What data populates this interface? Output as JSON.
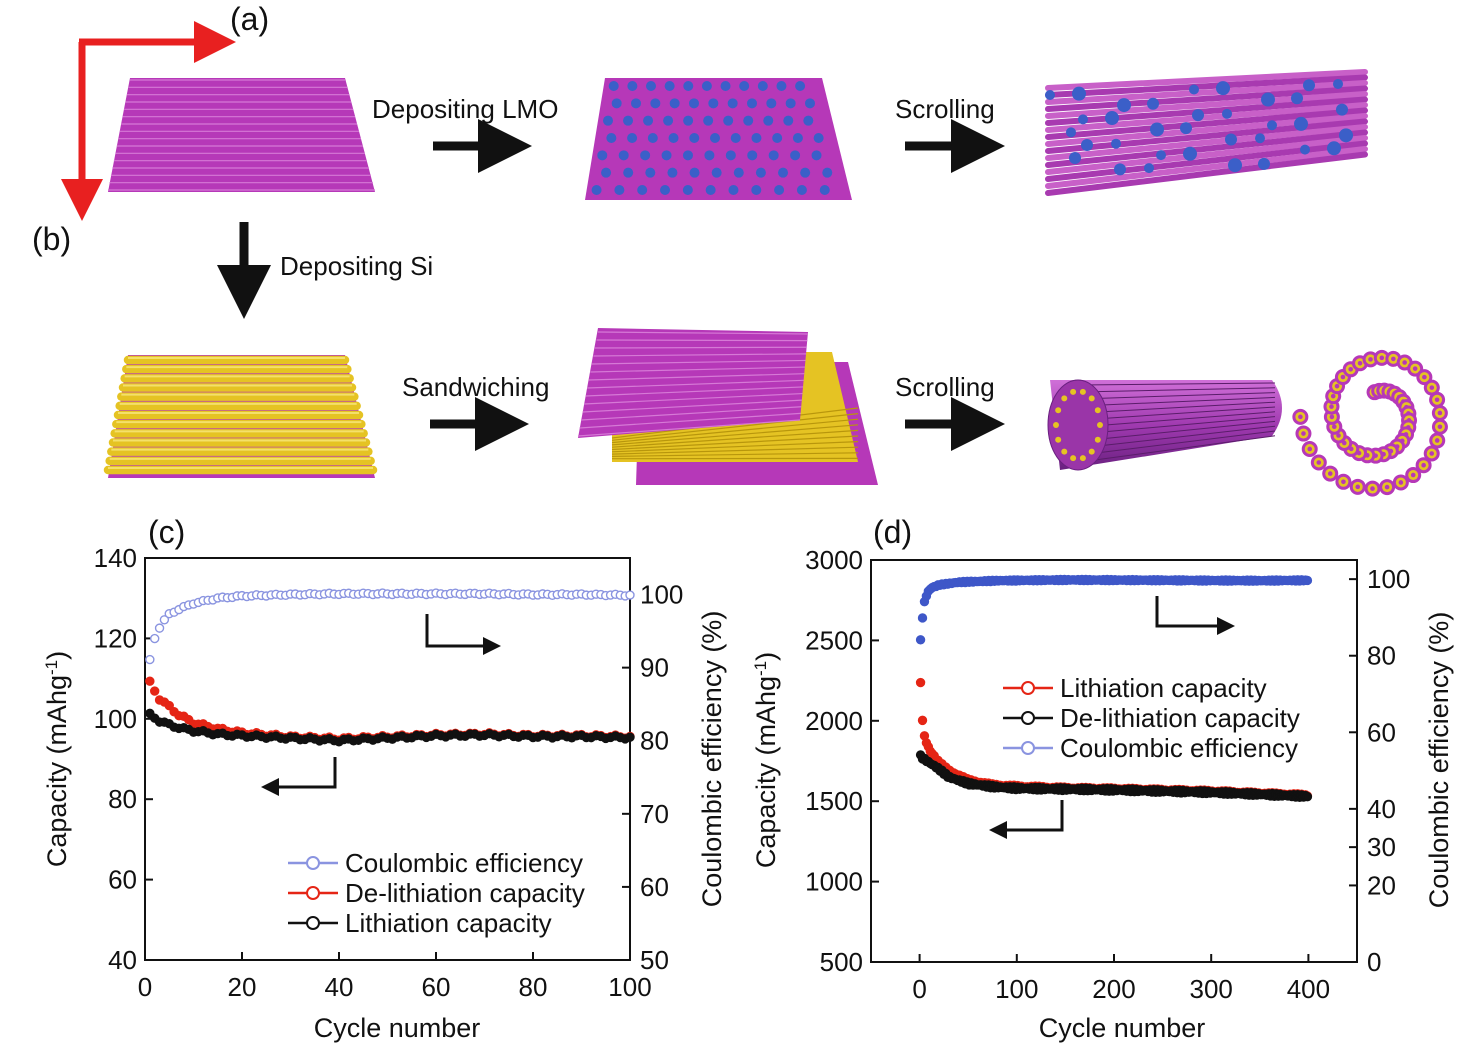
{
  "panel_labels": {
    "a": "(a)",
    "b": "(b)",
    "c": "(c)",
    "d": "(d)"
  },
  "schematic": {
    "step_depositing_lmo": "Depositing LMO",
    "step_scrolling_top": "Scrolling",
    "step_depositing_si": "Depositing Si",
    "step_sandwiching": "Sandwiching",
    "step_scrolling_bottom": "Scrolling"
  },
  "colors": {
    "magenta_sheet": "#c040c0",
    "gold_layer": "#e5c323",
    "lmo_particle": "#3b5fc8",
    "red_arrow": "#e82020",
    "lithiation_red": "#e52515",
    "delithiation_black": "#111111",
    "ce_blue_c": "#8a94e0",
    "ce_blue_d": "#3e57c8"
  },
  "chart_data": [
    {
      "panel": "c",
      "type": "scatter",
      "xlabel": "Cycle number",
      "ylabel_left": "Capacity (mAhg",
      "ylabel_left_sup": "-1",
      "ylabel_left_tail": ")",
      "ylabel_right": "Coulombic efficiency (%)",
      "xlim": [
        0,
        100
      ],
      "ylim_left": [
        40,
        140
      ],
      "ylim_right": [
        50,
        105
      ],
      "x_ticks": [
        "0",
        "20",
        "40",
        "60",
        "80",
        "100"
      ],
      "y_ticks_left": [
        "40",
        "60",
        "80",
        "100",
        "120",
        "140"
      ],
      "y_ticks_right": [
        "50",
        "60",
        "70",
        "80",
        "90",
        "100"
      ],
      "legend": [
        "Coulombic efficiency",
        "De-lithiation capacity",
        "Lithiation capacity"
      ],
      "series": [
        {
          "name": "Coulombic efficiency",
          "axis": "right",
          "x": [
            1,
            2,
            3,
            4,
            5,
            7,
            10,
            15,
            20,
            30,
            40,
            50,
            60,
            70,
            80,
            90,
            100
          ],
          "values": [
            91,
            94,
            95.5,
            96.5,
            97.3,
            98,
            98.8,
            99.5,
            99.8,
            100,
            100.1,
            100.1,
            100.1,
            100.1,
            100,
            100,
            99.9
          ]
        },
        {
          "name": "De-lithiation capacity",
          "axis": "left",
          "x": [
            1,
            2,
            3,
            5,
            7,
            10,
            15,
            20,
            30,
            40,
            50,
            60,
            70,
            80,
            90,
            100
          ],
          "values": [
            109,
            107,
            105,
            103,
            101,
            99,
            97.5,
            96.5,
            95.5,
            95,
            95.5,
            96,
            96.2,
            95.8,
            95.8,
            95.5
          ]
        },
        {
          "name": "Lithiation capacity",
          "axis": "left",
          "x": [
            1,
            3,
            5,
            8,
            10,
            15,
            20,
            30,
            40,
            50,
            60,
            70,
            80,
            90,
            100
          ],
          "values": [
            101,
            99.5,
            98.5,
            97.5,
            97,
            96.2,
            95.8,
            95.2,
            94.6,
            95.2,
            95.8,
            96,
            95.6,
            95.6,
            95.3
          ]
        }
      ]
    },
    {
      "panel": "d",
      "type": "scatter",
      "xlabel": "Cycle number",
      "ylabel_left": "Capacity (mAhg",
      "ylabel_left_sup": "-1",
      "ylabel_left_tail": ")",
      "ylabel_right": "Coulombic efficiency (%)",
      "xlim": [
        -50,
        450
      ],
      "ylim_left": [
        500,
        3000
      ],
      "ylim_right": [
        0,
        105
      ],
      "x_ticks": [
        "0",
        "100",
        "200",
        "300",
        "400"
      ],
      "y_ticks_left": [
        "500",
        "1000",
        "1500",
        "2000",
        "2500",
        "3000"
      ],
      "y_ticks_right": [
        "0",
        "20",
        "30",
        "40",
        "60",
        "80",
        "100"
      ],
      "legend": [
        "Lithiation capacity",
        "De-lithiation capacity",
        "Coulombic efficiency"
      ],
      "series": [
        {
          "name": "Coulombic efficiency",
          "axis": "right",
          "x": [
            1,
            3,
            5,
            8,
            12,
            20,
            40,
            80,
            150,
            250,
            350,
            400
          ],
          "values": [
            84,
            90,
            94,
            96.5,
            97.7,
            98.5,
            99.2,
            99.6,
            99.8,
            99.7,
            99.6,
            99.7
          ]
        },
        {
          "name": "Lithiation capacity",
          "axis": "left",
          "x": [
            1,
            3,
            5,
            10,
            20,
            30,
            50,
            75,
            100,
            150,
            200,
            300,
            400
          ],
          "values": [
            2230,
            2010,
            1900,
            1820,
            1740,
            1690,
            1630,
            1600,
            1590,
            1580,
            1575,
            1560,
            1535
          ]
        },
        {
          "name": "De-lithiation capacity",
          "axis": "left",
          "x": [
            1,
            3,
            5,
            10,
            20,
            30,
            50,
            75,
            100,
            150,
            200,
            300,
            400
          ],
          "values": [
            1780,
            1770,
            1760,
            1740,
            1700,
            1650,
            1610,
            1590,
            1580,
            1575,
            1570,
            1555,
            1530
          ]
        }
      ]
    }
  ]
}
